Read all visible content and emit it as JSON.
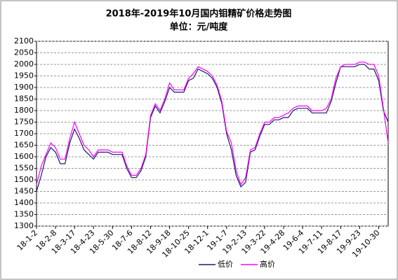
{
  "chart_data": {
    "type": "line",
    "title": "2018年-2019年10月国内钼精矿价格走势图",
    "subtitle": "单位：元/吨度",
    "categories": [
      "18-1-2",
      null,
      null,
      null,
      "18-2-8",
      null,
      null,
      null,
      "18-3-17",
      null,
      null,
      null,
      "18-4-23",
      null,
      null,
      null,
      "18-5-30",
      null,
      null,
      null,
      "18-7-6",
      null,
      null,
      null,
      "18-8-12",
      null,
      null,
      null,
      "18-9-18",
      null,
      null,
      null,
      "18-10-25",
      null,
      null,
      null,
      "18-12-1",
      null,
      null,
      null,
      "19-1-7",
      null,
      null,
      null,
      "19-2-13",
      null,
      null,
      null,
      "19-3-22",
      null,
      null,
      null,
      "19-4-28",
      null,
      null,
      null,
      "19-6-4",
      null,
      null,
      null,
      "19-7-11",
      null,
      null,
      null,
      "19-8-17",
      null,
      null,
      null,
      "19-9-23",
      null,
      null,
      null,
      "19-10-30",
      null,
      null
    ],
    "series": [
      {
        "name": "低价",
        "color": "#1a1a6e",
        "values": [
          1450,
          1520,
          1600,
          1640,
          1620,
          1570,
          1570,
          1660,
          1720,
          1680,
          1630,
          1610,
          1590,
          1620,
          1620,
          1620,
          1610,
          1610,
          1610,
          1550,
          1510,
          1510,
          1540,
          1600,
          1770,
          1820,
          1790,
          1840,
          1900,
          1880,
          1880,
          1880,
          1930,
          1940,
          1980,
          1970,
          1960,
          1940,
          1900,
          1830,
          1700,
          1630,
          1520,
          1470,
          1490,
          1620,
          1630,
          1690,
          1740,
          1740,
          1760,
          1760,
          1770,
          1770,
          1800,
          1810,
          1810,
          1810,
          1790,
          1790,
          1790,
          1790,
          1840,
          1920,
          1990,
          1990,
          1990,
          1990,
          2000,
          2000,
          1980,
          1980,
          1930,
          1800,
          1750
        ]
      },
      {
        "name": "高价",
        "color": "#ff00ff",
        "values": [
          1480,
          1560,
          1610,
          1660,
          1640,
          1590,
          1590,
          1680,
          1750,
          1700,
          1650,
          1630,
          1600,
          1630,
          1630,
          1630,
          1620,
          1620,
          1620,
          1560,
          1520,
          1520,
          1550,
          1610,
          1780,
          1830,
          1800,
          1850,
          1920,
          1890,
          1890,
          1890,
          1940,
          1960,
          1990,
          1980,
          1970,
          1950,
          1910,
          1840,
          1710,
          1660,
          1540,
          1480,
          1510,
          1630,
          1640,
          1700,
          1750,
          1750,
          1770,
          1770,
          1780,
          1790,
          1810,
          1820,
          1820,
          1820,
          1800,
          1800,
          1800,
          1810,
          1850,
          1940,
          1990,
          2000,
          2000,
          2000,
          2010,
          2010,
          2000,
          2000,
          1950,
          1810,
          1660
        ]
      }
    ],
    "ylim": [
      1300,
      2100
    ],
    "yticks": [
      1300,
      1350,
      1400,
      1450,
      1500,
      1550,
      1600,
      1650,
      1700,
      1750,
      1800,
      1850,
      1900,
      1950,
      2000,
      2050,
      2100
    ],
    "grid": true,
    "legend": "bottom"
  }
}
